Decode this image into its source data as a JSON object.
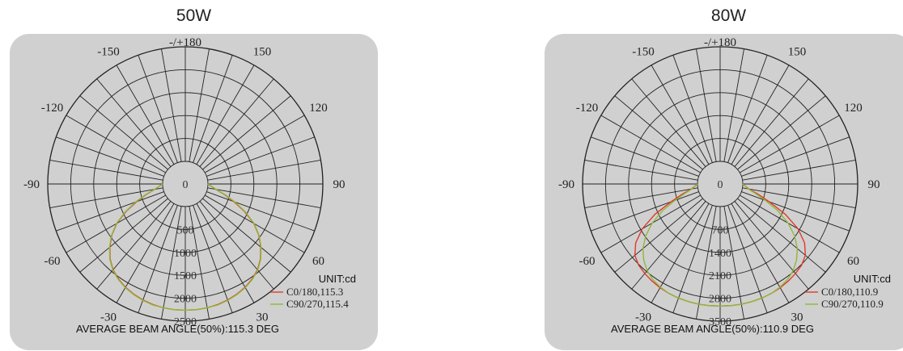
{
  "chart_data": [
    {
      "type": "polar",
      "title": "50W",
      "angle_labels": [
        "-/+180",
        "150",
        "120",
        "90",
        "60",
        "30",
        "-30",
        "-60",
        "-90",
        "-120",
        "-150"
      ],
      "radial_ticks": [
        "0",
        "500",
        "1000",
        "1500",
        "2000",
        "2500"
      ],
      "rmax": 2500,
      "unit": "UNIT:cd",
      "beam_angle_text": "AVERAGE BEAM ANGLE(50%):115.3 DEG",
      "series": [
        {
          "name": "C0/180,115.3",
          "color": "#e03a2a",
          "angles": [
            -90,
            -80,
            -75,
            -70,
            -65,
            -60,
            -55,
            -50,
            -45,
            -40,
            -35,
            -30,
            -25,
            -20,
            -15,
            -10,
            -5,
            0,
            5,
            10,
            15,
            20,
            25,
            30,
            35,
            40,
            45,
            50,
            55,
            60,
            65,
            70,
            75,
            80,
            90
          ],
          "values": [
            0,
            180,
            380,
            630,
            930,
            1230,
            1460,
            1650,
            1820,
            1950,
            2040,
            2110,
            2160,
            2200,
            2230,
            2250,
            2260,
            2260,
            2260,
            2250,
            2230,
            2200,
            2160,
            2110,
            2040,
            1950,
            1820,
            1650,
            1460,
            1230,
            930,
            630,
            380,
            180,
            0
          ]
        },
        {
          "name": "C90/270,115.4",
          "color": "#8fb83a",
          "angles": [
            -90,
            -80,
            -75,
            -70,
            -65,
            -60,
            -55,
            -50,
            -45,
            -40,
            -35,
            -30,
            -25,
            -20,
            -15,
            -10,
            -5,
            0,
            5,
            10,
            15,
            20,
            25,
            30,
            35,
            40,
            45,
            50,
            55,
            60,
            65,
            70,
            75,
            80,
            90
          ],
          "values": [
            0,
            190,
            400,
            660,
            950,
            1240,
            1470,
            1660,
            1830,
            1960,
            2050,
            2120,
            2170,
            2210,
            2240,
            2250,
            2260,
            2260,
            2260,
            2250,
            2240,
            2210,
            2170,
            2120,
            2050,
            1960,
            1830,
            1660,
            1470,
            1240,
            950,
            660,
            400,
            190,
            0
          ]
        }
      ]
    },
    {
      "type": "polar",
      "title": "80W",
      "angle_labels": [
        "-/+180",
        "150",
        "120",
        "90",
        "60",
        "30",
        "-30",
        "-60",
        "-90",
        "-120",
        "-150"
      ],
      "radial_ticks": [
        "0",
        "700",
        "1400",
        "2100",
        "2800",
        "3500"
      ],
      "rmax": 3500,
      "unit": "UNIT:cd",
      "beam_angle_text": "AVERAGE BEAM ANGLE(50%):110.9 DEG",
      "series": [
        {
          "name": "C0/180,110.9",
          "color": "#e03a2a",
          "angles": [
            -90,
            -80,
            -75,
            -70,
            -65,
            -60,
            -55,
            -50,
            -45,
            -40,
            -35,
            -30,
            -25,
            -20,
            -15,
            -10,
            -5,
            0,
            5,
            10,
            15,
            20,
            25,
            30,
            35,
            40,
            45,
            50,
            55,
            60,
            65,
            70,
            75,
            80,
            90
          ],
          "values": [
            0,
            200,
            500,
            900,
            1500,
            2050,
            2450,
            2700,
            2820,
            2880,
            2930,
            2970,
            3000,
            3020,
            3030,
            3040,
            3040,
            3040,
            3040,
            3040,
            3030,
            3020,
            3000,
            2970,
            2930,
            2880,
            2820,
            2700,
            2450,
            2050,
            1500,
            900,
            500,
            200,
            0
          ]
        },
        {
          "name": "C90/270,110.9",
          "color": "#8fb83a",
          "angles": [
            -90,
            -80,
            -75,
            -70,
            -65,
            -60,
            -55,
            -50,
            -45,
            -40,
            -35,
            -30,
            -25,
            -20,
            -15,
            -10,
            -5,
            0,
            5,
            10,
            15,
            20,
            25,
            30,
            35,
            40,
            45,
            50,
            55,
            60,
            65,
            70,
            75,
            80,
            90
          ],
          "values": [
            0,
            180,
            420,
            780,
            1250,
            1700,
            2080,
            2380,
            2600,
            2770,
            2880,
            2950,
            3000,
            3020,
            3030,
            3040,
            3040,
            3040,
            3040,
            3040,
            3030,
            3020,
            3000,
            2950,
            2880,
            2770,
            2600,
            2380,
            2080,
            1700,
            1250,
            780,
            420,
            180,
            0
          ]
        }
      ]
    }
  ]
}
